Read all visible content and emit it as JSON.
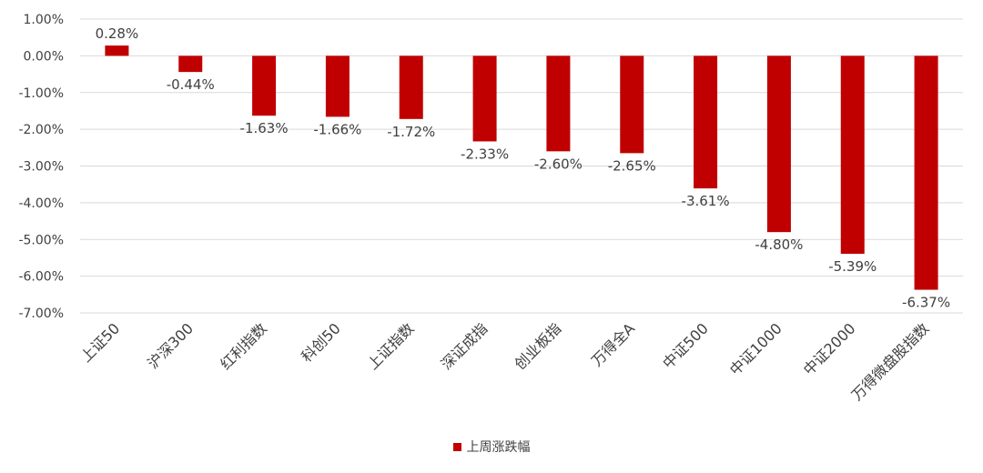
{
  "chart_data": {
    "type": "bar",
    "categories": [
      "上证50",
      "沪深300",
      "红利指数",
      "科创50",
      "上证指数",
      "深证成指",
      "创业板指",
      "万得全A",
      "中证500",
      "中证1000",
      "中证2000",
      "万得微盘股指数"
    ],
    "series": [
      {
        "name": "上周涨跌幅",
        "values": [
          0.28,
          -0.44,
          -1.63,
          -1.66,
          -1.72,
          -2.33,
          -2.6,
          -2.65,
          -3.61,
          -4.8,
          -5.39,
          -6.37
        ],
        "labels": [
          "0.28%",
          "-0.44%",
          "-1.63%",
          "-1.66%",
          "-1.72%",
          "-2.33%",
          "-2.60%",
          "-2.65%",
          "-3.61%",
          "-4.80%",
          "-5.39%",
          "-6.37%"
        ],
        "color": "#C00000"
      }
    ],
    "ylim": [
      -7,
      1
    ],
    "yticks": [
      1,
      0,
      -1,
      -2,
      -3,
      -4,
      -5,
      -6,
      -7
    ],
    "ytick_labels": [
      "1.00%",
      "0.00%",
      "-1.00%",
      "-2.00%",
      "-3.00%",
      "-4.00%",
      "-5.00%",
      "-6.00%",
      "-7.00%"
    ],
    "grid": true,
    "legend_position": "bottom"
  }
}
